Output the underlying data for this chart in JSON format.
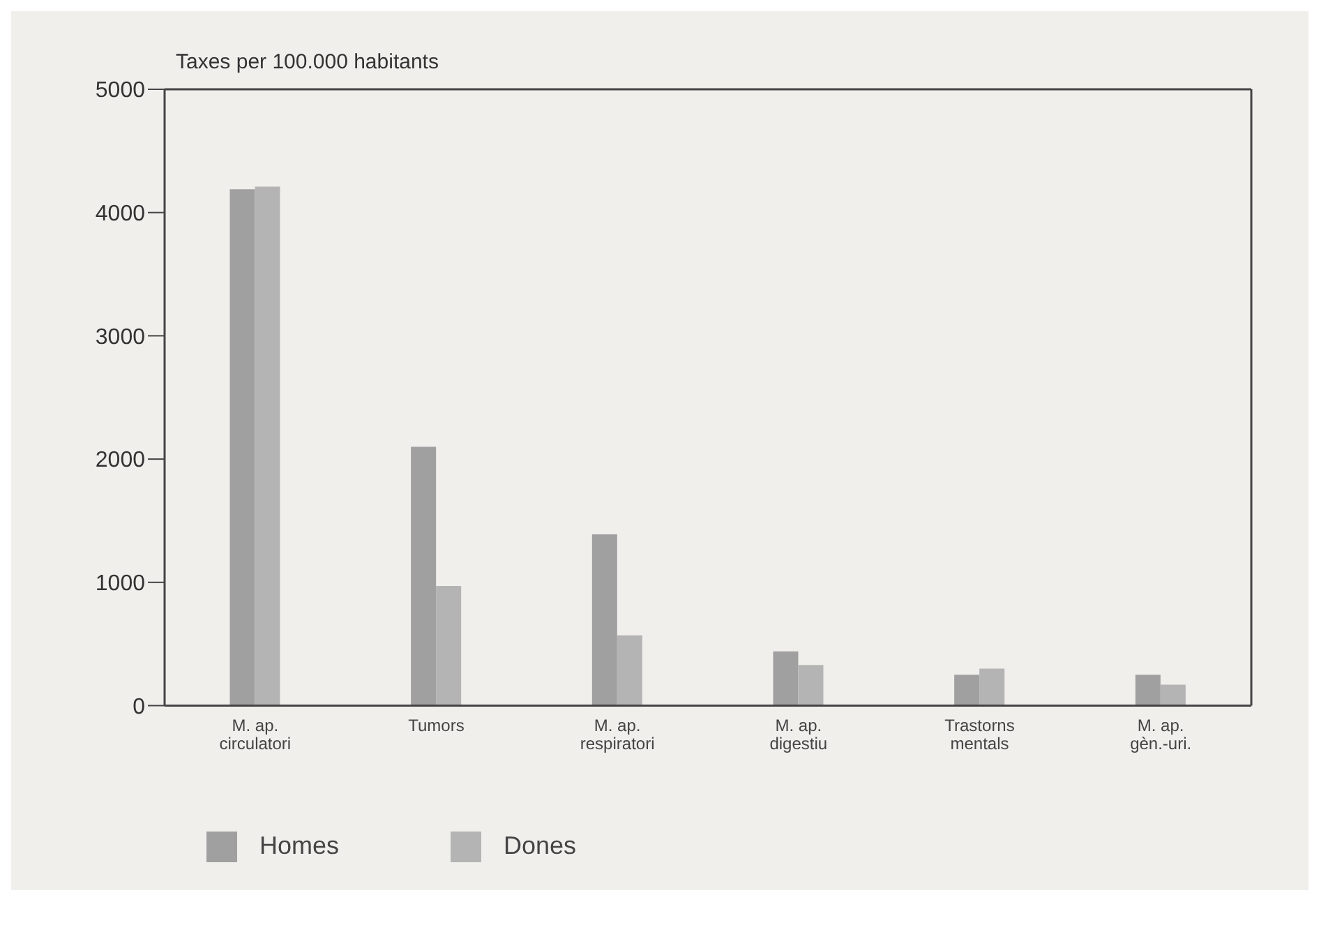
{
  "chart_data": {
    "type": "bar",
    "ylabel": "Taxes per 100.000 habitants",
    "categories": [
      "M. ap. circulatori",
      "Tumors",
      "M. ap. respiratori",
      "M. ap. digestiu",
      "Trastorns mentals",
      "M. ap. gèn.-uri."
    ],
    "series": [
      {
        "name": "Homes",
        "color": "#a0a0a0",
        "values": [
          4190,
          2100,
          1390,
          440,
          250,
          250
        ]
      },
      {
        "name": "Dones",
        "color": "#b4b4b4",
        "values": [
          4210,
          970,
          570,
          330,
          300,
          170
        ]
      }
    ],
    "ylim": [
      0,
      5000
    ],
    "yticks": [
      0,
      1000,
      2000,
      3000,
      4000,
      5000
    ],
    "grid": false,
    "legend": "bottom left"
  }
}
